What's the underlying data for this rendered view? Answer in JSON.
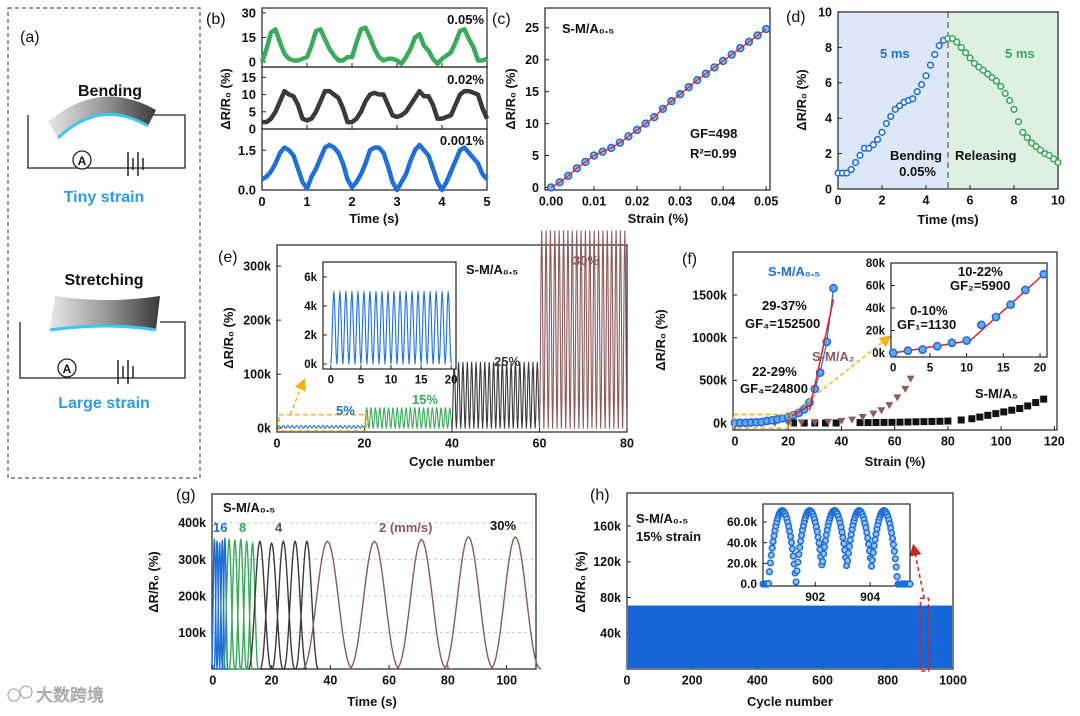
{
  "watermark": "大数跨境",
  "colors": {
    "green": "#3aaa5c",
    "black": "#3a3a3a",
    "blue": "#1f6fd9",
    "brown": "#8b5a5a",
    "red": "#e02020",
    "yellow": "#f0b020",
    "cyan": "#2a9de0"
  },
  "panel_a": {
    "label": "(a)",
    "top_title": "Bending",
    "top_caption": "Tiny strain",
    "bottom_title": "Stretching",
    "bottom_caption": "Large strain",
    "ammeter": "A"
  },
  "chart_data": [
    {
      "panel": "(b)",
      "type": "line",
      "xlabel": "Time (s)",
      "ylabel": "ΔR/R₀ (%)",
      "xlim": [
        0,
        5
      ],
      "xticks": [
        0,
        1,
        2,
        3,
        4,
        5
      ],
      "xtick_labels": [
        "0",
        "1",
        "2",
        "3",
        "4",
        "5"
      ],
      "x_step": 0.1,
      "series": [
        {
          "name": "0.05%",
          "ylim": [
            -3,
            33
          ],
          "yticks": [
            0,
            15,
            30
          ],
          "ytick_labels": [
            "0",
            "15",
            "30"
          ],
          "values": [
            0,
            8,
            18,
            20,
            12,
            5,
            2,
            1,
            1,
            2,
            3,
            10,
            19,
            20,
            14,
            8,
            4,
            1,
            1,
            3,
            3,
            12,
            20,
            21,
            15,
            8,
            3,
            1,
            2,
            2,
            1,
            -1,
            3,
            8,
            15,
            17,
            10,
            7,
            2,
            -1,
            2,
            4,
            6,
            12,
            19,
            20,
            14,
            9,
            1,
            1,
            2
          ]
        },
        {
          "name": "0.02%",
          "ylim": [
            0,
            18
          ],
          "yticks": [
            0,
            5,
            10,
            15
          ],
          "ytick_labels": [
            "0",
            "5",
            "10",
            "15"
          ],
          "values": [
            2,
            2,
            3,
            5,
            8,
            11,
            10,
            9.5,
            7,
            3,
            2.5,
            3,
            5,
            8,
            11,
            11,
            10,
            9,
            6,
            2,
            2,
            3,
            5,
            8,
            10,
            10.5,
            10,
            10,
            7,
            4,
            3.5,
            4,
            5,
            7,
            9,
            11,
            9.5,
            9.5,
            7,
            3,
            3,
            3.5,
            4,
            7,
            10,
            11,
            11,
            10.5,
            10,
            6,
            3
          ]
        },
        {
          "name": "0.001%",
          "ylim": [
            0,
            2.3
          ],
          "yticks": [
            0,
            1.5
          ],
          "ytick_labels": [
            "0.0",
            "1.5"
          ],
          "values": [
            0.4,
            0.5,
            0.7,
            1.0,
            1.4,
            1.6,
            1.5,
            1.3,
            0.8,
            0.3,
            0.05,
            0.5,
            0.8,
            1.2,
            1.6,
            1.7,
            1.6,
            1.4,
            1.0,
            0.4,
            0.1,
            0.3,
            0.6,
            1.0,
            1.5,
            1.6,
            1.6,
            1.4,
            0.9,
            0.3,
            0.0,
            0.3,
            0.6,
            1.1,
            1.5,
            1.7,
            1.5,
            1.3,
            0.8,
            0.3,
            0.0,
            0.3,
            0.7,
            1.1,
            1.5,
            1.6,
            1.4,
            1.2,
            1.0,
            0.6,
            0.4
          ]
        }
      ]
    },
    {
      "panel": "(c)",
      "type": "scatter",
      "title": "S-M/A₀.₅",
      "xlabel": "Strain (%)",
      "ylabel": "ΔR/R₀ (%)",
      "xlim": [
        -0.0014,
        0.0509
      ],
      "ylim": [
        -0.4,
        28.1
      ],
      "xticks": [
        0,
        0.01,
        0.02,
        0.03,
        0.04,
        0.05
      ],
      "xtick_labels": [
        "0.00",
        "0.01",
        "0.02",
        "0.03",
        "0.04",
        "0.05"
      ],
      "yticks": [
        0,
        5,
        10,
        15,
        20,
        25
      ],
      "ytick_labels": [
        "0",
        "5",
        "10",
        "15",
        "20",
        "25"
      ],
      "x": [
        0,
        0.002,
        0.004,
        0.006,
        0.008,
        0.01,
        0.012,
        0.014,
        0.016,
        0.018,
        0.02,
        0.022,
        0.024,
        0.026,
        0.028,
        0.03,
        0.032,
        0.034,
        0.036,
        0.038,
        0.04,
        0.042,
        0.044,
        0.046,
        0.048,
        0.05
      ],
      "y": [
        0,
        0.8,
        1.8,
        3,
        4,
        5,
        5.6,
        6.2,
        7,
        8,
        9,
        10,
        11,
        12.3,
        13.5,
        14.6,
        15.7,
        16.8,
        17.8,
        18.8,
        19.8,
        20.8,
        21.8,
        22.8,
        23.8,
        24.8
      ],
      "annotations": [
        "GF=498",
        "R²=0.99"
      ]
    },
    {
      "panel": "(d)",
      "type": "scatter",
      "xlabel": "Time (ms)",
      "ylabel": "ΔR/R₀ (%)",
      "xlim": [
        0,
        10
      ],
      "ylim": [
        0,
        10
      ],
      "xticks": [
        0,
        2,
        4,
        6,
        8,
        10
      ],
      "xtick_labels": [
        "0",
        "2",
        "4",
        "6",
        "8",
        "10"
      ],
      "yticks": [
        0,
        2,
        4,
        6,
        8,
        10
      ],
      "ytick_labels": [
        "0",
        "2",
        "4",
        "6",
        "8",
        "10"
      ],
      "series": [
        {
          "name": "Bending",
          "x": [
            0,
            0.2,
            0.4,
            0.6,
            0.8,
            1.0,
            1.2,
            1.4,
            1.6,
            1.8,
            2.0,
            2.2,
            2.4,
            2.6,
            2.8,
            3.0,
            3.2,
            3.4,
            3.6,
            3.8,
            4.0,
            4.2,
            4.4,
            4.6,
            4.8,
            5.0
          ],
          "y": [
            0.9,
            0.9,
            0.9,
            1.1,
            1.5,
            1.9,
            2.3,
            2.3,
            2.5,
            2.8,
            3.2,
            3.7,
            4.1,
            4.5,
            4.7,
            4.9,
            5.0,
            5.1,
            5.5,
            5.9,
            6.4,
            7.0,
            7.6,
            8.1,
            8.4,
            8.5
          ]
        },
        {
          "name": "Releasing",
          "x": [
            5.0,
            5.2,
            5.4,
            5.6,
            5.8,
            6.0,
            6.2,
            6.4,
            6.6,
            6.8,
            7.0,
            7.2,
            7.4,
            7.6,
            7.8,
            8.0,
            8.2,
            8.4,
            8.6,
            8.8,
            9.0,
            9.2,
            9.4,
            9.6,
            9.8,
            10
          ],
          "y": [
            8.5,
            8.5,
            8.3,
            8.0,
            7.7,
            7.4,
            7.1,
            6.9,
            6.7,
            6.5,
            6.3,
            6.1,
            5.8,
            5.4,
            5.0,
            4.5,
            3.8,
            3.2,
            2.9,
            2.6,
            2.4,
            2.2,
            2.0,
            1.9,
            1.7,
            1.5
          ]
        }
      ],
      "annotations": {
        "left_time": "5 ms",
        "right_time": "5 ms",
        "bending": "Bending",
        "bending_strain": "0.05%",
        "releasing": "Releasing"
      }
    },
    {
      "panel": "(e)",
      "type": "line",
      "title": "S-M/A₀.₅",
      "xlabel": "Cycle number",
      "ylabel": "ΔR/R₀ (%)",
      "xlim": [
        0,
        80
      ],
      "ylim": [
        -7000,
        339000
      ],
      "xticks": [
        0,
        20,
        40,
        60,
        80
      ],
      "xtick_labels": [
        "0",
        "20",
        "40",
        "60",
        "80"
      ],
      "yticks": [
        0,
        100000,
        200000,
        300000
      ],
      "ytick_labels": [
        "0k",
        "100k",
        "200k",
        "300k"
      ],
      "segments": [
        {
          "name": "5%",
          "start": 0,
          "end": 20,
          "cycles": 20,
          "peak": 5000
        },
        {
          "name": "15%",
          "start": 20,
          "end": 40,
          "cycles": 20,
          "peak": 38000
        },
        {
          "name": "25%",
          "start": 40,
          "end": 60,
          "cycles": 20,
          "peak": 122000
        },
        {
          "name": "30%",
          "start": 60,
          "end": 80,
          "cycles": 20,
          "peak": 365000
        }
      ],
      "inset": {
        "xlim": [
          -1.3,
          20.8
        ],
        "ylim": [
          -350,
          7030
        ],
        "xticks": [
          0,
          5,
          10,
          15,
          20
        ],
        "xtick_labels": [
          "0",
          "5",
          "10",
          "15",
          "20"
        ],
        "yticks": [
          0,
          2000,
          4000,
          6000
        ],
        "ytick_labels": [
          "0k",
          "2k",
          "4k",
          "6k"
        ],
        "cycles": 20,
        "peak": 5000
      }
    },
    {
      "panel": "(f)",
      "type": "scatter",
      "xlabel": "Strain (%)",
      "ylabel": "ΔR/R₀ (%)",
      "xlim": [
        -0.75,
        121
      ],
      "ylim": [
        -82000,
        2004000
      ],
      "xticks": [
        0,
        20,
        40,
        60,
        80,
        100,
        120
      ],
      "xtick_labels": [
        "0",
        "20",
        "40",
        "60",
        "80",
        "100",
        "120"
      ],
      "yticks": [
        0,
        500000,
        1000000,
        1500000
      ],
      "ytick_labels": [
        "0k",
        "500k",
        "1000k",
        "1500k"
      ],
      "series": [
        {
          "name": "S-M/A₀.₅",
          "x": [
            0,
            2,
            4,
            6,
            8,
            10,
            12,
            14,
            16,
            18,
            20,
            22,
            24,
            26,
            28,
            30,
            32,
            34.5,
            37
          ],
          "y": [
            0,
            2000,
            3000,
            6000,
            9000,
            11000,
            25000,
            32000,
            43000,
            56000,
            70000,
            90000,
            120000,
            160000,
            240000,
            400000,
            590000,
            950000,
            1580000
          ]
        },
        {
          "name": "S-M/A₂",
          "x": [
            0,
            5,
            10,
            15,
            20,
            25,
            30,
            35,
            40,
            44,
            48,
            52,
            55,
            58,
            61,
            64,
            66
          ],
          "y": [
            0,
            0,
            0,
            0,
            5000,
            8000,
            10000,
            15000,
            25000,
            40000,
            70000,
            110000,
            150000,
            210000,
            300000,
            400000,
            520000
          ]
        },
        {
          "name": "S-M/A₅",
          "x": [
            22,
            26,
            30,
            34,
            38,
            47,
            50,
            53,
            56,
            59,
            62,
            65,
            68,
            71,
            74,
            77,
            80,
            85,
            89,
            92,
            95,
            98,
            101,
            104,
            107,
            110,
            113,
            116
          ],
          "y": [
            0,
            0,
            0,
            0,
            0,
            5000,
            5000,
            6000,
            7000,
            8000,
            10000,
            12000,
            14000,
            16000,
            18000,
            20000,
            23000,
            35000,
            50000,
            70000,
            90000,
            110000,
            130000,
            150000,
            170000,
            200000,
            240000,
            280000
          ]
        }
      ],
      "fits": [
        {
          "x": [
            20,
            29
          ],
          "y": [
            60000,
            220000
          ]
        },
        {
          "x": [
            28,
            37
          ],
          "y": [
            150000,
            1450000
          ]
        }
      ],
      "annotations": {
        "range4": "29-37%",
        "gf4": "GF₄=152500",
        "range3": "22-29%",
        "gf3": "GF₄=24800"
      },
      "inset": {
        "xlim": [
          -0.3,
          20.95
        ],
        "ylim": [
          -3600,
          80000
        ],
        "xticks": [
          0,
          5,
          10,
          15,
          20
        ],
        "xtick_labels": [
          "0",
          "5",
          "10",
          "15",
          "20"
        ],
        "yticks": [
          0,
          20000,
          40000,
          60000,
          80000
        ],
        "ytick_labels": [
          "0k",
          "20k",
          "40k",
          "60k",
          "80k"
        ],
        "x": [
          0,
          2,
          4,
          6,
          8,
          10,
          12,
          14,
          16,
          18,
          20.5
        ],
        "y": [
          0,
          2000,
          3000,
          6000,
          9000,
          11000,
          25000,
          32000,
          43000,
          56000,
          70000
        ],
        "fits": [
          {
            "x": [
              0,
              10.5
            ],
            "y": [
              0,
              11000
            ]
          },
          {
            "x": [
              10.5,
              20.5
            ],
            "y": [
              11000,
              70000
            ]
          }
        ],
        "annotations": {
          "range1": "0-10%",
          "gf1": "GF₁=1130",
          "range2": "10-22%",
          "gf2": "GF₂=5900"
        }
      }
    },
    {
      "panel": "(g)",
      "type": "line",
      "title": "S-M/A₀.₅",
      "xlabel": "Time (s)",
      "ylabel": "ΔR/R₀ (%)",
      "xlim": [
        -0.3,
        110
      ],
      "ylim": [
        0,
        479000
      ],
      "xticks": [
        0,
        20,
        40,
        60,
        80,
        100
      ],
      "xtick_labels": [
        "0",
        "20",
        "40",
        "60",
        "80",
        "100"
      ],
      "yticks": [
        100000,
        200000,
        300000,
        400000
      ],
      "ytick_labels": [
        "100k",
        "200k",
        "300k",
        "400k"
      ],
      "strain_label": "30%",
      "series": [
        {
          "name": "16",
          "halfwidth": 0.45,
          "peak_times": [
            0.5,
            1.4,
            2.3,
            3.2,
            4.1
          ],
          "peak_values": [
            355000,
            350000,
            345000,
            352000,
            358000
          ]
        },
        {
          "name": "8",
          "halfwidth": 0.9,
          "peak_times": [
            5.5,
            7.5,
            9.5,
            11.5,
            13.5
          ],
          "peak_values": [
            355000,
            353000,
            355000,
            350000,
            345000
          ]
        },
        {
          "name": "4",
          "halfwidth": 1.8,
          "peak_times": [
            16,
            20,
            24,
            28,
            32
          ],
          "peak_values": [
            350000,
            345000,
            350000,
            350000,
            350000
          ]
        },
        {
          "name": "2 (mm/s)",
          "halfwidth": 4,
          "peak_times": [
            39,
            55,
            71,
            87,
            103
          ],
          "peak_values": [
            350000,
            350000,
            355000,
            362000,
            362000
          ]
        }
      ]
    },
    {
      "panel": "(h)",
      "type": "area",
      "title": "S-M/A₀.₅",
      "subtitle": "15% strain",
      "xlabel": "Cycle number",
      "ylabel": "ΔR/R₀ (%)",
      "xlim": [
        0,
        1000
      ],
      "ylim": [
        0,
        197000
      ],
      "xticks": [
        0,
        200,
        400,
        600,
        800,
        1000
      ],
      "xtick_labels": [
        "0",
        "200",
        "400",
        "600",
        "800",
        "1000"
      ],
      "yticks": [
        40000,
        80000,
        120000,
        160000
      ],
      "ytick_labels": [
        "40k",
        "80k",
        "120k",
        "160k"
      ],
      "cycles": 1000,
      "peak": 71000,
      "highlight_cycles": [
        900,
        925
      ],
      "inset": {
        "xlim": [
          900.1,
          905.45
        ],
        "ylim": [
          -1900,
          77400
        ],
        "xticks": [
          902,
          904
        ],
        "xtick_labels": [
          "902",
          "904"
        ],
        "yticks": [
          0,
          20000,
          40000,
          60000
        ],
        "ytick_labels": [
          "0.0",
          "20.0k",
          "40.0k",
          "60.0k"
        ],
        "peak_times": [
          900.8,
          901.8,
          902.7,
          903.6,
          904.5
        ],
        "peak": 71000
      }
    }
  ]
}
